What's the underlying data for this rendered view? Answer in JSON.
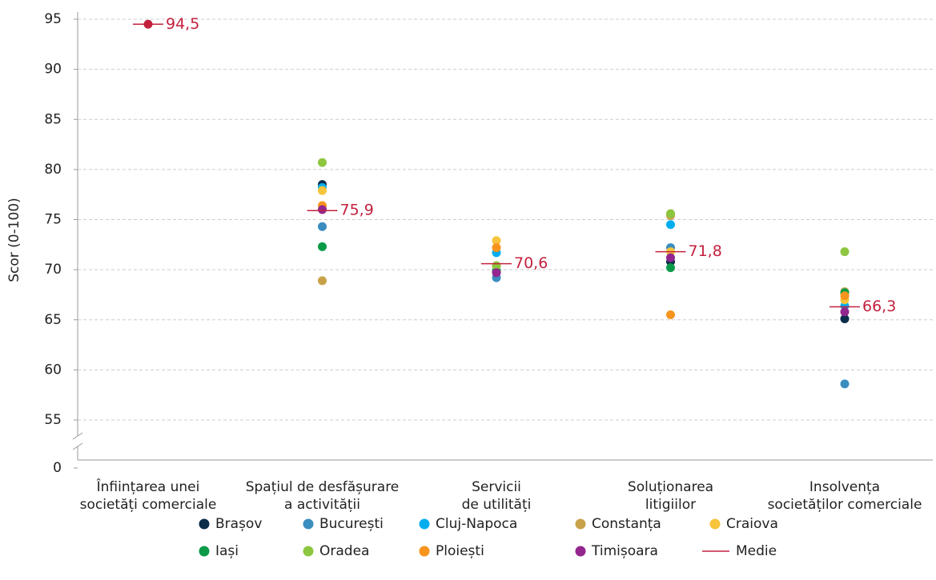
{
  "chart_data": {
    "type": "strip",
    "y_label": "Scor (0-100)",
    "categories": [
      "Înființarea unei\nsocietăți comerciale",
      "Spațiul de desfășurare\na activității",
      "Servicii\nde utilități",
      "Soluționarea\nlitigiilor",
      "Insolvența\nsocietăților comerciale"
    ],
    "ylim": [
      0,
      95
    ],
    "ybreak": [
      0,
      55
    ],
    "yticks": [
      0,
      55,
      60,
      65,
      70,
      75,
      80,
      85,
      90,
      95
    ],
    "grid": true,
    "legend": "bottom",
    "series": [
      {
        "name": "Brașov",
        "color": "#0b2c4a",
        "values": [
          null,
          78.5,
          69.8,
          70.8,
          65.1
        ]
      },
      {
        "name": "București",
        "color": "#3a8dbf",
        "values": [
          null,
          74.3,
          69.2,
          72.2,
          58.6
        ]
      },
      {
        "name": "Cluj-Napoca",
        "color": "#00aeef",
        "values": [
          null,
          78.2,
          71.7,
          74.5,
          66.4
        ]
      },
      {
        "name": "Constanța",
        "color": "#c8a24a",
        "values": [
          null,
          68.9,
          70.4,
          75.4,
          67.8
        ]
      },
      {
        "name": "Craiova",
        "color": "#f7c43b",
        "values": [
          null,
          77.9,
          72.9,
          71.8,
          67.0
        ]
      },
      {
        "name": "Iași",
        "color": "#0a9a48",
        "values": [
          null,
          72.3,
          69.9,
          70.2,
          67.7
        ]
      },
      {
        "name": "Oradea",
        "color": "#8dc63f",
        "values": [
          null,
          80.7,
          70.4,
          75.6,
          71.8
        ]
      },
      {
        "name": "Ploiești",
        "color": "#f7941d",
        "values": [
          null,
          76.4,
          72.2,
          65.5,
          67.4
        ]
      },
      {
        "name": "Timișoara",
        "color": "#93268f",
        "values": [
          null,
          76.0,
          69.7,
          71.2,
          65.8
        ]
      },
      {
        "name": "Medie",
        "color": "#c3213e",
        "mean": true,
        "values": [
          94.5,
          75.9,
          70.6,
          71.8,
          66.3
        ],
        "value_labels": [
          "94,5",
          "75,9",
          "70,6",
          "71,8",
          "66,3"
        ]
      }
    ]
  }
}
